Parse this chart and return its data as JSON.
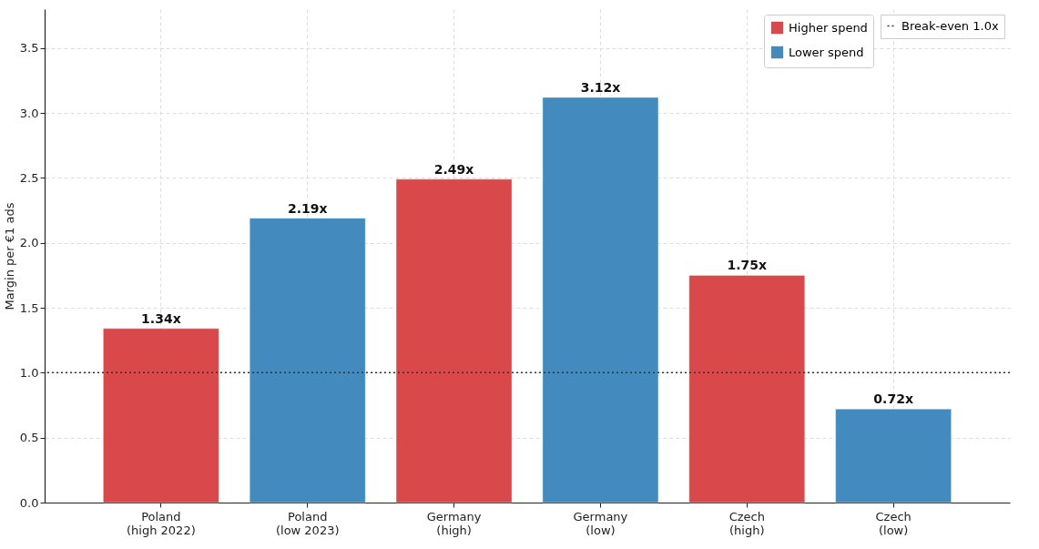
{
  "chart_data": {
    "type": "bar",
    "categories": [
      "Poland\n(high 2022)",
      "Poland\n(low 2023)",
      "Germany\n(high)",
      "Germany\n(low)",
      "Czech\n(high)",
      "Czech\n(low)"
    ],
    "series": [
      {
        "name": "Higher spend",
        "color": "#d9484a",
        "values": [
          1.34,
          null,
          2.49,
          null,
          1.75,
          null
        ],
        "value_labels": [
          "1.34x",
          null,
          "2.49x",
          null,
          "1.75x",
          null
        ]
      },
      {
        "name": "Lower spend",
        "color": "#438bbf",
        "values": [
          null,
          2.19,
          null,
          3.12,
          null,
          0.72
        ],
        "value_labels": [
          null,
          "2.19x",
          null,
          "3.12x",
          null,
          "0.72x"
        ]
      }
    ],
    "ylabel": "Margin per €1 ads",
    "ylim": [
      0,
      3.8
    ],
    "yticks": [
      {
        "value": 0,
        "label": "0.0"
      },
      0.5,
      {
        "value": 1,
        "label": "1.0"
      },
      1.5,
      {
        "value": 2,
        "label": "2.0"
      },
      2.5,
      {
        "value": 3,
        "label": "3.0"
      },
      3.5
    ],
    "ref_lines": [
      {
        "axis": "y",
        "value": 1.0,
        "label": "Break-even 1.0x",
        "color": "#333333",
        "line_style": "dotted"
      }
    ],
    "grid": true,
    "legend": "top right"
  }
}
